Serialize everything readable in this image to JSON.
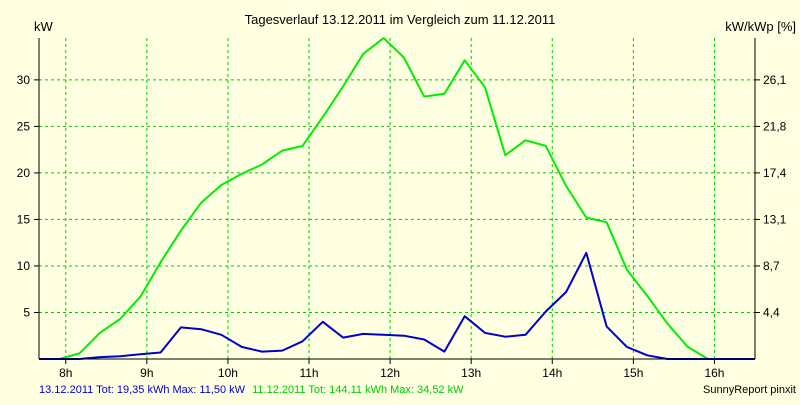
{
  "chart_data": {
    "type": "line",
    "title": "Tagesverlauf 13.12.2011 im Vergleich zum 11.12.2011",
    "y_left_unit": "kW",
    "y_right_unit": "kW/kWp [%]",
    "x_ticks": [
      "8h",
      "9h",
      "10h",
      "11h",
      "12h",
      "13h",
      "14h",
      "15h",
      "16h"
    ],
    "x_tick_values": [
      8,
      9,
      10,
      11,
      12,
      13,
      14,
      15,
      16
    ],
    "xlim": [
      7.67,
      16.5
    ],
    "ylim": [
      0,
      34.5
    ],
    "y_left_ticks": [
      "5",
      "10",
      "15",
      "20",
      "25",
      "30"
    ],
    "y_left_tick_values": [
      5,
      10,
      15,
      20,
      25,
      30
    ],
    "y_right_ticks": [
      "4,4",
      "8,7",
      "13,1",
      "17,4",
      "21,8",
      "26,1"
    ],
    "grid": true,
    "series": [
      {
        "name": "11.12.2011",
        "color": "#00ee00",
        "x": [
          7.67,
          7.92,
          8.17,
          8.42,
          8.67,
          8.92,
          9.17,
          9.42,
          9.67,
          9.92,
          10.17,
          10.42,
          10.67,
          10.92,
          11.17,
          11.42,
          11.67,
          11.92,
          12.17,
          12.42,
          12.67,
          12.92,
          13.17,
          13.42,
          13.67,
          13.92,
          14.17,
          14.42,
          14.67,
          14.92,
          15.17,
          15.42,
          15.67,
          15.92,
          16.17,
          16.5
        ],
        "values": [
          0,
          0,
          0.6,
          2.8,
          4.3,
          6.7,
          10.4,
          13.8,
          16.8,
          18.7,
          19.9,
          20.9,
          22.4,
          22.9,
          26.0,
          29.3,
          32.8,
          34.5,
          32.4,
          28.2,
          28.5,
          32.1,
          29.2,
          21.9,
          23.5,
          22.9,
          18.6,
          15.2,
          14.7,
          9.6,
          6.8,
          3.8,
          1.3,
          0,
          0,
          0
        ]
      },
      {
        "name": "13.12.2011",
        "color": "#0000cc",
        "x": [
          7.67,
          8.17,
          8.42,
          8.67,
          8.92,
          9.17,
          9.42,
          9.67,
          9.92,
          10.17,
          10.42,
          10.67,
          10.92,
          11.17,
          11.42,
          11.67,
          11.92,
          12.17,
          12.42,
          12.67,
          12.92,
          13.17,
          13.42,
          13.67,
          13.92,
          14.17,
          14.42,
          14.67,
          14.92,
          15.17,
          15.42,
          15.67,
          15.92,
          16.17,
          16.5
        ],
        "values": [
          0,
          0,
          0.2,
          0.3,
          0.5,
          0.7,
          3.4,
          3.2,
          2.6,
          1.3,
          0.8,
          0.9,
          1.9,
          4.0,
          2.3,
          2.7,
          2.6,
          2.5,
          2.1,
          0.8,
          4.6,
          2.8,
          2.4,
          2.6,
          5.1,
          7.2,
          11.4,
          3.5,
          1.3,
          0.4,
          0,
          0,
          0,
          0,
          0
        ]
      }
    ]
  },
  "footer": {
    "blue_text": "13.12.2011 Tot: 19,35 kWh Max: 11,50 kW",
    "green_text": "11.12.2011 Tot: 144,11 kWh Max: 34,52 kW",
    "credit": "SunnyReport pinxit"
  },
  "colors": {
    "background": "#ffffe1",
    "grid": "#00cc00",
    "blue_series": "#0000cc",
    "green_series": "#00ee00",
    "axis": "#000000"
  }
}
